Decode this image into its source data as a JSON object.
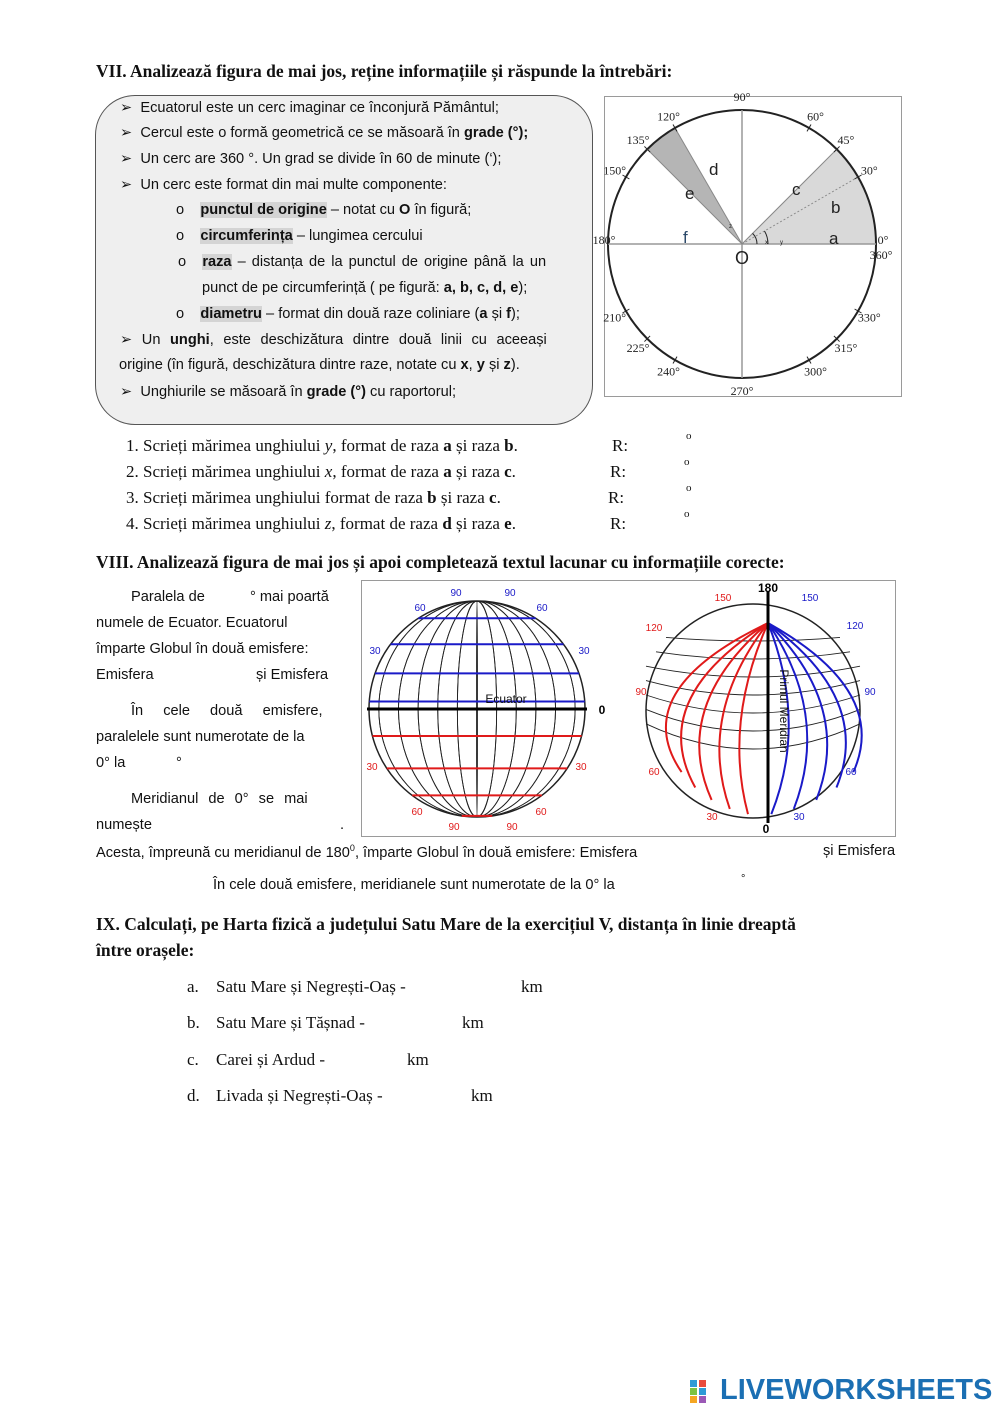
{
  "section7": {
    "heading": "VII.  Analizează figura de mai jos, reține informațiile și răspunde la întrebări:",
    "bullets": {
      "b1": "Ecuatorul este un cerc imaginar ce înconjură Pământul;",
      "b2_pre": "Cercul este o formă geometrică ce se măsoară în ",
      "b2_bold": "grade (°);",
      "b3": "Un  cerc are 360 °. Un grad se divide în 60 de minute (‘);",
      "b4": "Un cerc este format din mai multe componente:",
      "s1_bold": "punctul de origine",
      "s1_mid": " – notat cu ",
      "s1_o": "O",
      "s1_post": " în figură;",
      "s2_bold": "circumferința",
      "s2_post": " – lungimea cercului",
      "s3_bold": "raza",
      "s3_post": " – distanța de la punctul de origine până la un",
      "s3_line2_pre": "punct de pe circumferință ( pe figură: ",
      "s3_line2_bold": "a, b, c, d, e",
      "s3_line2_post": ");",
      "s4_bold": "diametru",
      "s4_pre": " – format din două raze coliniare (",
      "s4_a": "a",
      "s4_si": " și ",
      "s4_f": "f",
      "s4_post": ");",
      "b5_pre": "Un ",
      "b5_bold": "unghi",
      "b5_post": ", este deschizătura dintre două linii cu aceeași",
      "b5_line2_pre": "origine (în figură, deschizătura dintre raze, notate cu ",
      "b5_x": "x",
      "b5_sep1": ", ",
      "b5_y": "y",
      "b5_sep2": " și ",
      "b5_z": "z",
      "b5_end": ").",
      "b6_pre": "Unghiurile se măsoară în ",
      "b6_bold": "grade (°)",
      "b6_post": " cu raportorul;"
    },
    "circle": {
      "origin_label": "O",
      "radius_labels": {
        "a": "a",
        "b": "b",
        "c": "c",
        "d": "d",
        "e": "e",
        "f": "f"
      },
      "angle_labels": {
        "x": "x",
        "y": "y",
        "z": "z"
      },
      "degree_labels": [
        {
          "text": "90°",
          "angle": 90
        },
        {
          "text": "60°",
          "angle": 60
        },
        {
          "text": "45°",
          "angle": 45
        },
        {
          "text": "30°",
          "angle": 30
        },
        {
          "text": "0°",
          "angle": 0
        },
        {
          "text": "360°",
          "angle": 360
        },
        {
          "text": "120°",
          "angle": 120
        },
        {
          "text": "135°",
          "angle": 135
        },
        {
          "text": "150°",
          "angle": 150
        },
        {
          "text": "180°",
          "angle": 180
        },
        {
          "text": "210°",
          "angle": 210
        },
        {
          "text": "225°",
          "angle": 225
        },
        {
          "text": "240°",
          "angle": 240
        },
        {
          "text": "270°",
          "angle": 270
        },
        {
          "text": "300°",
          "angle": 300
        },
        {
          "text": "315°",
          "angle": 315
        },
        {
          "text": "330°",
          "angle": 330
        }
      ],
      "shade_light": "#d9d9d9",
      "shade_dark": "#b5b5b5"
    },
    "questions": [
      {
        "num": "1.",
        "pre": "Scrieți mărimea unghiului ",
        "var": "y",
        "mid": ", format de raza ",
        "r1": "a",
        "si": " și raza ",
        "r2": "b",
        "end": ".",
        "r_label": "R:",
        "deg": "o"
      },
      {
        "num": "2.",
        "pre": "Scrieți mărimea unghiului ",
        "var": "x",
        "mid": ", format de raza ",
        "r1": "a",
        "si": " și raza ",
        "r2": "c",
        "end": ".",
        "r_label": "R:",
        "deg": "o"
      },
      {
        "num": "3.",
        "pre": "Scrieți mărimea unghiului format de raza ",
        "var": "",
        "mid": "",
        "r1": "b",
        "si": " și raza ",
        "r2": "c",
        "end": ".",
        "r_label": "R:",
        "deg": "o"
      },
      {
        "num": "4.",
        "pre": "Scrieți mărimea unghiului ",
        "var": "z",
        "mid": ", format de raza ",
        "r1": "d",
        "si": " și raza ",
        "r2": "e",
        "end": ".",
        "r_label": "R:",
        "deg": "o"
      }
    ]
  },
  "section8": {
    "heading": "VIII. Analizează figura de mai jos și apoi completează textul lacunar cu informațiile corecte:",
    "lines": {
      "l1a": "Paralela de",
      "l1b": "° mai poartă",
      "l2": "numele de Ecuator. Ecuatorul",
      "l3": "împarte Globul în două emisfere:",
      "l4a": "Emisfera",
      "l4b": "și Emisfera",
      "l5": "În cele două emisfere,",
      "l6": "paralelele sunt numerotate de la",
      "l7a": "0° la",
      "l7b": "°",
      "l8": "Meridianul de 0° se mai",
      "l9a": "numește",
      "l9b": ".",
      "l10a": "Acesta, împreună cu meridianul de 180",
      "l10sup": "0",
      "l10b": ", împarte Globul în două emisfere: Emisfera",
      "l10c": "și Emisfera",
      "l11a": "În cele două emisfere, meridianele sunt numerotate de la 0° la",
      "l11b": "°"
    },
    "globe_left": {
      "equator_label": "Ecuator",
      "zero": "0",
      "north_labels": [
        "90",
        "90",
        "60",
        "60",
        "30",
        "30"
      ],
      "south_labels": [
        "30",
        "30",
        "60",
        "60",
        "90",
        "90"
      ],
      "north_color": "#1a1ac8",
      "south_color": "#e01a1a"
    },
    "globe_right": {
      "top": "180",
      "bottom": "0",
      "meridian_label": "Primul Meridian",
      "west_labels": [
        "150",
        "120",
        "90",
        "60",
        "30"
      ],
      "east_labels": [
        "150",
        "120",
        "90",
        "60",
        "30"
      ],
      "west_color": "#e01a1a",
      "east_color": "#1a1ac8"
    }
  },
  "section9": {
    "heading_line1": "IX.  Calculați, pe Harta fizică a județului Satu Mare de la exercițiul V, distanța în linie dreaptă",
    "heading_line2": "între orașele:",
    "items": [
      {
        "letter": "a.",
        "text": "Satu Mare și Negrești-Oaș -",
        "unit": "km"
      },
      {
        "letter": "b.",
        "text": "Satu Mare și Tășnad -",
        "unit": "km"
      },
      {
        "letter": "c.",
        "text": "Carei și Ardud -",
        "unit": "km"
      },
      {
        "letter": "d.",
        "text": "Livada și Negrești-Oaș -",
        "unit": "km"
      }
    ]
  },
  "footer": {
    "logo_text": "LIVEWORKSHEETS"
  }
}
